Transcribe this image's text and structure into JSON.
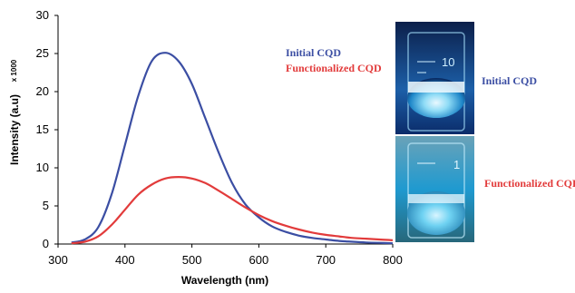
{
  "colors": {
    "initial": "#3b4ea3",
    "functionalized": "#e23b3b"
  },
  "chart_data": {
    "type": "line",
    "xlabel": "Wavelength (nm)",
    "ylabel": "Intensity (a.u)",
    "y_scale_note": "x 1000",
    "xlim": [
      300,
      800
    ],
    "ylim": [
      0,
      30
    ],
    "x_ticks": [
      300,
      400,
      500,
      600,
      700,
      800
    ],
    "y_ticks": [
      0,
      5,
      10,
      15,
      20,
      25,
      30
    ],
    "grid": false,
    "legend_position": "top-right",
    "series": [
      {
        "name": "Initial CQD",
        "x": [
          320,
          340,
          360,
          380,
          400,
          420,
          440,
          460,
          480,
          500,
          520,
          540,
          560,
          580,
          600,
          620,
          640,
          660,
          680,
          700,
          720,
          740,
          760,
          780,
          800
        ],
        "y": [
          0.2,
          0.6,
          2.2,
          6.5,
          13.0,
          19.5,
          24.0,
          25.1,
          24.0,
          21.0,
          16.5,
          12.0,
          8.0,
          5.2,
          3.5,
          2.3,
          1.6,
          1.1,
          0.8,
          0.6,
          0.4,
          0.3,
          0.2,
          0.15,
          0.1
        ]
      },
      {
        "name": "Functionalized CQD",
        "x": [
          320,
          340,
          360,
          380,
          400,
          420,
          440,
          460,
          480,
          500,
          520,
          540,
          560,
          580,
          600,
          620,
          640,
          660,
          680,
          700,
          720,
          740,
          760,
          780,
          800
        ],
        "y": [
          0.1,
          0.3,
          1.0,
          2.5,
          4.5,
          6.5,
          7.8,
          8.6,
          8.8,
          8.6,
          8.0,
          7.0,
          5.9,
          4.8,
          3.8,
          3.0,
          2.4,
          1.9,
          1.5,
          1.2,
          1.0,
          0.8,
          0.7,
          0.6,
          0.5
        ]
      }
    ]
  },
  "legend": {
    "initial": "Initial CQD",
    "functionalized": "Functionalized CQD"
  },
  "photos": {
    "top": {
      "label": "Initial CQD",
      "beaker_mark": "10"
    },
    "bottom": {
      "label": "Functionalized CQD",
      "beaker_mark": "1"
    }
  }
}
